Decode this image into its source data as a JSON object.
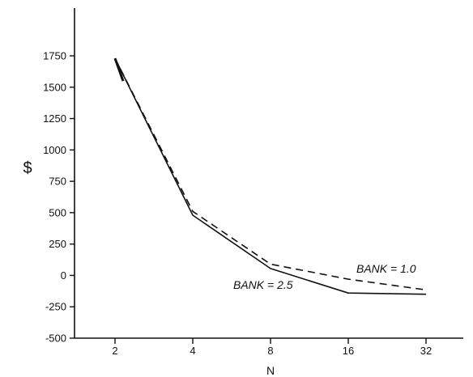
{
  "chart_data": {
    "type": "line",
    "title": "",
    "xlabel": "N",
    "ylabel": "$",
    "categories": [
      "2",
      "4",
      "8",
      "16",
      "32"
    ],
    "x": [
      2,
      4,
      8,
      16,
      32
    ],
    "x_scale": "log2",
    "ylim": [
      -500,
      2000
    ],
    "yticks": [
      -500,
      -250,
      0,
      250,
      500,
      750,
      1000,
      1250,
      1500,
      1750
    ],
    "grid": false,
    "legend": "none",
    "series": [
      {
        "name": "BANK = 2.5",
        "style": "solid",
        "color": "#111111",
        "values": [
          1730,
          480,
          55,
          -140,
          -150
        ]
      },
      {
        "name": "BANK = 1.0",
        "style": "dashed",
        "color": "#111111",
        "values": [
          1730,
          510,
          90,
          -30,
          -115
        ]
      }
    ]
  }
}
